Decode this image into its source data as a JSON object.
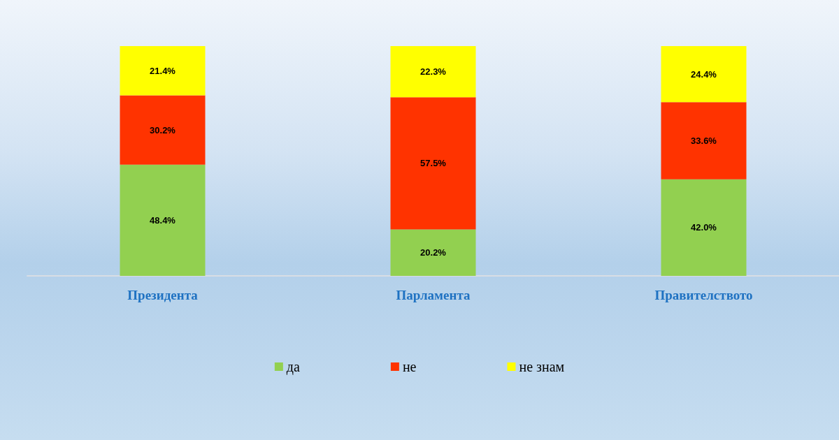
{
  "chart_data": {
    "type": "bar",
    "stacked": true,
    "categories": [
      "Президента",
      "Парламента",
      "Правителството"
    ],
    "series": [
      {
        "name": "да",
        "color": "#92d050",
        "values": [
          48.4,
          20.2,
          42.0
        ],
        "value_labels": [
          "48.4%",
          "20.2%",
          "42.0%"
        ]
      },
      {
        "name": "не",
        "color": "#ff3300",
        "values": [
          30.2,
          57.5,
          33.6
        ],
        "value_labels": [
          "30.2%",
          "57.5%",
          "33.6%"
        ]
      },
      {
        "name": "не знам",
        "color": "#ffff00",
        "values": [
          21.4,
          22.3,
          24.4
        ],
        "value_labels": [
          "21.4%",
          "22.3%",
          "24.4%"
        ]
      }
    ],
    "legend": "bottom",
    "tick_labels": "x"
  }
}
